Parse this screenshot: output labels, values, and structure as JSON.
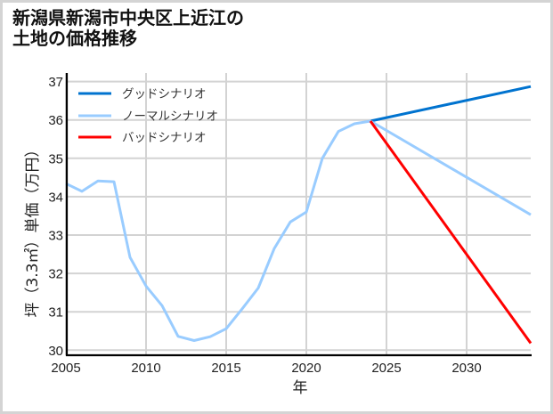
{
  "title": {
    "line1": "新潟県新潟市中央区上近江の",
    "line2": "土地の価格推移"
  },
  "chart_data": {
    "type": "line",
    "title": "新潟県新潟市中央区上近江の土地の価格推移",
    "xlabel": "年",
    "ylabel": "坪（3.3㎡）単価（万円）",
    "xlim": [
      2005,
      2034
    ],
    "ylim": [
      29.85,
      37.2
    ],
    "xticks": [
      2005,
      2010,
      2015,
      2020,
      2025,
      2030
    ],
    "yticks": [
      30,
      31,
      32,
      33,
      34,
      35,
      36,
      37
    ],
    "grid": true,
    "legend_position": "upper left",
    "series": [
      {
        "name": "グッドシナリオ",
        "color": "#0073cf",
        "x": [
          2024,
          2034
        ],
        "values": [
          35.97,
          36.87
        ]
      },
      {
        "name": "ノーマルシナリオ",
        "color": "#99ccff",
        "x": [
          2005,
          2006,
          2007,
          2008,
          2009,
          2010,
          2011,
          2012,
          2013,
          2014,
          2015,
          2016,
          2017,
          2018,
          2019,
          2020,
          2021,
          2022,
          2023,
          2024,
          2034
        ],
        "values": [
          34.34,
          34.14,
          34.41,
          34.39,
          32.42,
          31.67,
          31.16,
          30.36,
          30.25,
          30.35,
          30.56,
          31.08,
          31.62,
          32.65,
          33.34,
          33.6,
          35.0,
          35.7,
          35.9,
          35.97,
          33.53
        ]
      },
      {
        "name": "バッドシナリオ",
        "color": "#ff0000",
        "x": [
          2024,
          2034
        ],
        "values": [
          35.97,
          30.18
        ]
      }
    ]
  }
}
